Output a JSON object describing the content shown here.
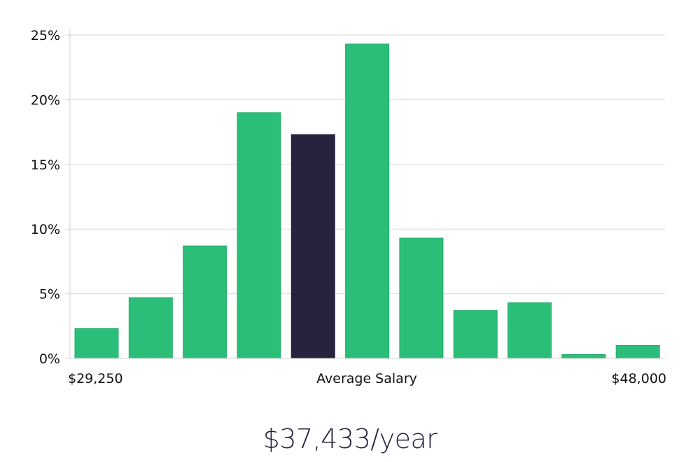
{
  "chart_data": {
    "type": "bar",
    "title": "",
    "xlabel": "Average Salary",
    "ylabel": "",
    "x_min_label": "$29,250",
    "x_max_label": "$48,000",
    "ylim": [
      0,
      25
    ],
    "yticks": [
      0,
      5,
      10,
      15,
      20,
      25
    ],
    "ytick_labels": [
      "0%",
      "5%",
      "10%",
      "15%",
      "20%",
      "25%"
    ],
    "grid": true,
    "highlight_index": 4,
    "values": [
      2.3,
      4.7,
      8.7,
      19.0,
      17.3,
      24.3,
      9.3,
      3.7,
      4.3,
      0.3,
      1.0
    ]
  },
  "colors": {
    "bar": "#2bbe78",
    "bar_stroke": "#25ad6c",
    "highlight": "#27233f",
    "grid": "#d9d9d9",
    "axis": "#d0d0d0",
    "text": "#111111"
  },
  "summary": {
    "average_salary": "$37,433/year"
  }
}
